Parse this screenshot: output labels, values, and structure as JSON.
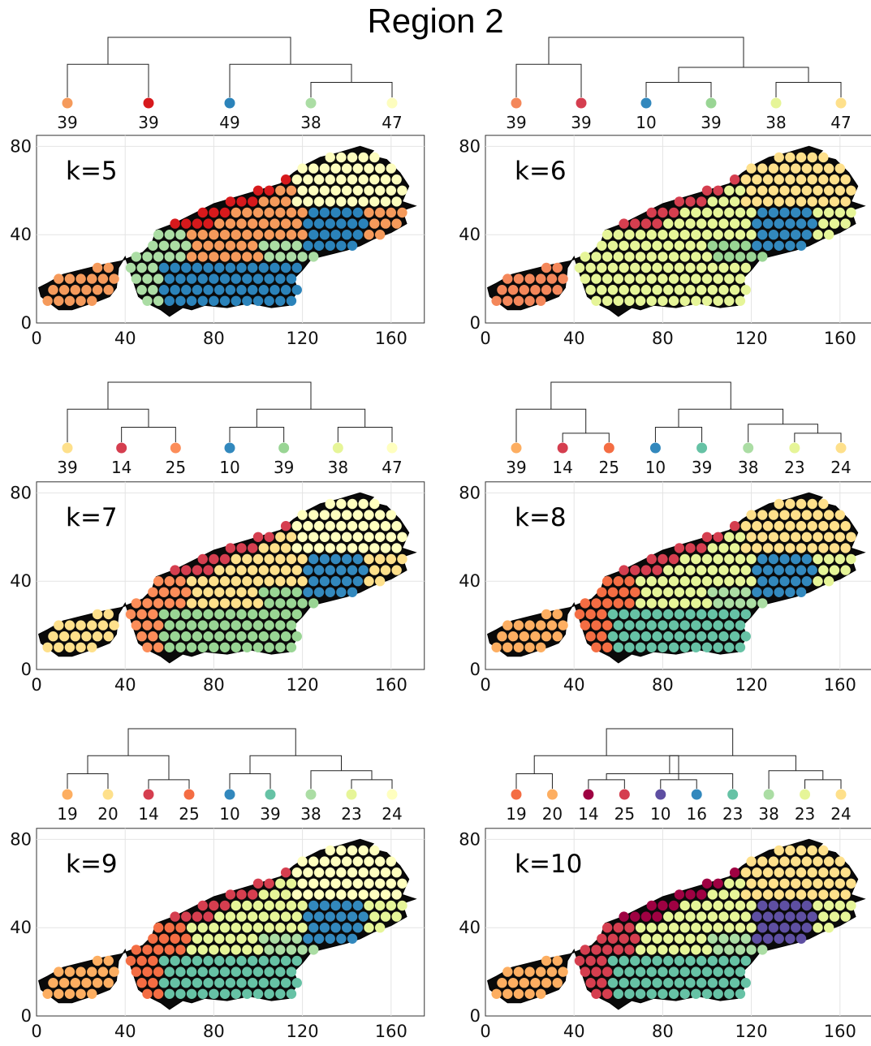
{
  "title": "Region 2",
  "chart_data": [
    {
      "type": "scatter",
      "annotation": "k=5",
      "xlim": [
        0,
        175
      ],
      "ylim": [
        0,
        85
      ],
      "xticks": [
        "0",
        "40",
        "80",
        "120",
        "160"
      ],
      "yticks": [
        "0",
        "40",
        "80"
      ],
      "grid": true,
      "clusters": [
        {
          "count": "39",
          "color": "#f59a5b"
        },
        {
          "count": "39",
          "color": "#d7191c"
        },
        {
          "count": "49",
          "color": "#2b83ba"
        },
        {
          "count": "38",
          "color": "#abdda4"
        },
        {
          "count": "47",
          "color": "#fdfdbe"
        }
      ],
      "dendrogram": [
        [
          3,
          4,
          0.25
        ],
        [
          2,
          5,
          0.55
        ],
        [
          0,
          1,
          0.55
        ],
        [
          6,
          7,
          1.0
        ]
      ]
    },
    {
      "type": "scatter",
      "annotation": "k=6",
      "xlim": [
        0,
        175
      ],
      "ylim": [
        0,
        85
      ],
      "xticks": [
        "0",
        "40",
        "80",
        "120",
        "160"
      ],
      "yticks": [
        "0",
        "40",
        "80"
      ],
      "grid": true,
      "clusters": [
        {
          "count": "39",
          "color": "#f4875a"
        },
        {
          "count": "39",
          "color": "#d53e4f"
        },
        {
          "count": "10",
          "color": "#3288bd"
        },
        {
          "count": "39",
          "color": "#99d594"
        },
        {
          "count": "38",
          "color": "#e6f598"
        },
        {
          "count": "47",
          "color": "#fee08b"
        }
      ],
      "dendrogram": [
        [
          2,
          3,
          0.25
        ],
        [
          4,
          5,
          0.25
        ],
        [
          6,
          7,
          0.5
        ],
        [
          0,
          1,
          0.55
        ],
        [
          9,
          8,
          1.0
        ]
      ]
    },
    {
      "type": "scatter",
      "annotation": "k=7",
      "xlim": [
        0,
        175
      ],
      "ylim": [
        0,
        85
      ],
      "xticks": [
        "0",
        "40",
        "80",
        "120",
        "160"
      ],
      "yticks": [
        "0",
        "40",
        "80"
      ],
      "grid": true,
      "clusters": [
        {
          "count": "39",
          "color": "#fee08b"
        },
        {
          "count": "14",
          "color": "#d53e4f"
        },
        {
          "count": "25",
          "color": "#fc8d59"
        },
        {
          "count": "10",
          "color": "#3288bd"
        },
        {
          "count": "39",
          "color": "#99d594"
        },
        {
          "count": "38",
          "color": "#e6f598"
        },
        {
          "count": "47",
          "color": "#ffffbf"
        }
      ],
      "dendrogram": [
        [
          1,
          2,
          0.25
        ],
        [
          3,
          4,
          0.25
        ],
        [
          5,
          6,
          0.25
        ],
        [
          0,
          7,
          0.55
        ],
        [
          8,
          9,
          0.55
        ],
        [
          10,
          11,
          1.0
        ]
      ]
    },
    {
      "type": "scatter",
      "annotation": "k=8",
      "xlim": [
        0,
        175
      ],
      "ylim": [
        0,
        85
      ],
      "xticks": [
        "0",
        "40",
        "80",
        "120",
        "160"
      ],
      "yticks": [
        "0",
        "40",
        "80"
      ],
      "grid": true,
      "clusters": [
        {
          "count": "39",
          "color": "#fdae61"
        },
        {
          "count": "14",
          "color": "#d53e4f"
        },
        {
          "count": "25",
          "color": "#f46d43"
        },
        {
          "count": "10",
          "color": "#3288bd"
        },
        {
          "count": "39",
          "color": "#66c2a5"
        },
        {
          "count": "38",
          "color": "#abdda4"
        },
        {
          "count": "23",
          "color": "#e6f598"
        },
        {
          "count": "24",
          "color": "#fee08b"
        }
      ],
      "dendrogram": [
        [
          1,
          2,
          0.15
        ],
        [
          6,
          7,
          0.15
        ],
        [
          3,
          4,
          0.25
        ],
        [
          5,
          9,
          0.3
        ],
        [
          0,
          8,
          0.55
        ],
        [
          10,
          11,
          0.55
        ],
        [
          12,
          13,
          1.0
        ]
      ]
    },
    {
      "type": "scatter",
      "annotation": "k=9",
      "xlim": [
        0,
        175
      ],
      "ylim": [
        0,
        85
      ],
      "xticks": [
        "0",
        "40",
        "80",
        "120",
        "160"
      ],
      "yticks": [
        "0",
        "40",
        "80"
      ],
      "grid": true,
      "clusters": [
        {
          "count": "19",
          "color": "#fdae61"
        },
        {
          "count": "20",
          "color": "#fee08b"
        },
        {
          "count": "14",
          "color": "#d53e4f"
        },
        {
          "count": "25",
          "color": "#f46d43"
        },
        {
          "count": "10",
          "color": "#3288bd"
        },
        {
          "count": "39",
          "color": "#66c2a5"
        },
        {
          "count": "38",
          "color": "#abdda4"
        },
        {
          "count": "23",
          "color": "#e6f598"
        },
        {
          "count": "24",
          "color": "#ffffbf"
        }
      ],
      "dendrogram": [
        [
          2,
          3,
          0.15
        ],
        [
          7,
          8,
          0.15
        ],
        [
          0,
          1,
          0.25
        ],
        [
          4,
          5,
          0.25
        ],
        [
          6,
          10,
          0.3
        ],
        [
          11,
          9,
          0.55
        ],
        [
          12,
          13,
          0.55
        ],
        [
          14,
          15,
          1.0
        ]
      ]
    },
    {
      "type": "scatter",
      "annotation": "k=10",
      "xlim": [
        0,
        175
      ],
      "ylim": [
        0,
        85
      ],
      "xticks": [
        "0",
        "40",
        "80",
        "120",
        "160"
      ],
      "yticks": [
        "0",
        "40",
        "80"
      ],
      "grid": true,
      "clusters": [
        {
          "count": "19",
          "color": "#f46d43"
        },
        {
          "count": "20",
          "color": "#fdae61"
        },
        {
          "count": "14",
          "color": "#9e0142"
        },
        {
          "count": "25",
          "color": "#d53e4f"
        },
        {
          "count": "10",
          "color": "#5e4fa2"
        },
        {
          "count": "16",
          "color": "#3288bd"
        },
        {
          "count": "23",
          "color": "#66c2a5"
        },
        {
          "count": "38",
          "color": "#abdda4"
        },
        {
          "count": "23",
          "color": "#e6f598"
        },
        {
          "count": "24",
          "color": "#fee08b"
        }
      ],
      "dendrogram": [
        [
          2,
          3,
          0.15
        ],
        [
          4,
          5,
          0.15
        ],
        [
          8,
          9,
          0.15
        ],
        [
          0,
          1,
          0.25
        ],
        [
          10,
          6,
          0.25
        ],
        [
          7,
          12,
          0.3
        ],
        [
          13,
          11,
          0.55
        ],
        [
          14,
          15,
          0.55
        ],
        [
          16,
          17,
          1.0
        ]
      ]
    }
  ]
}
